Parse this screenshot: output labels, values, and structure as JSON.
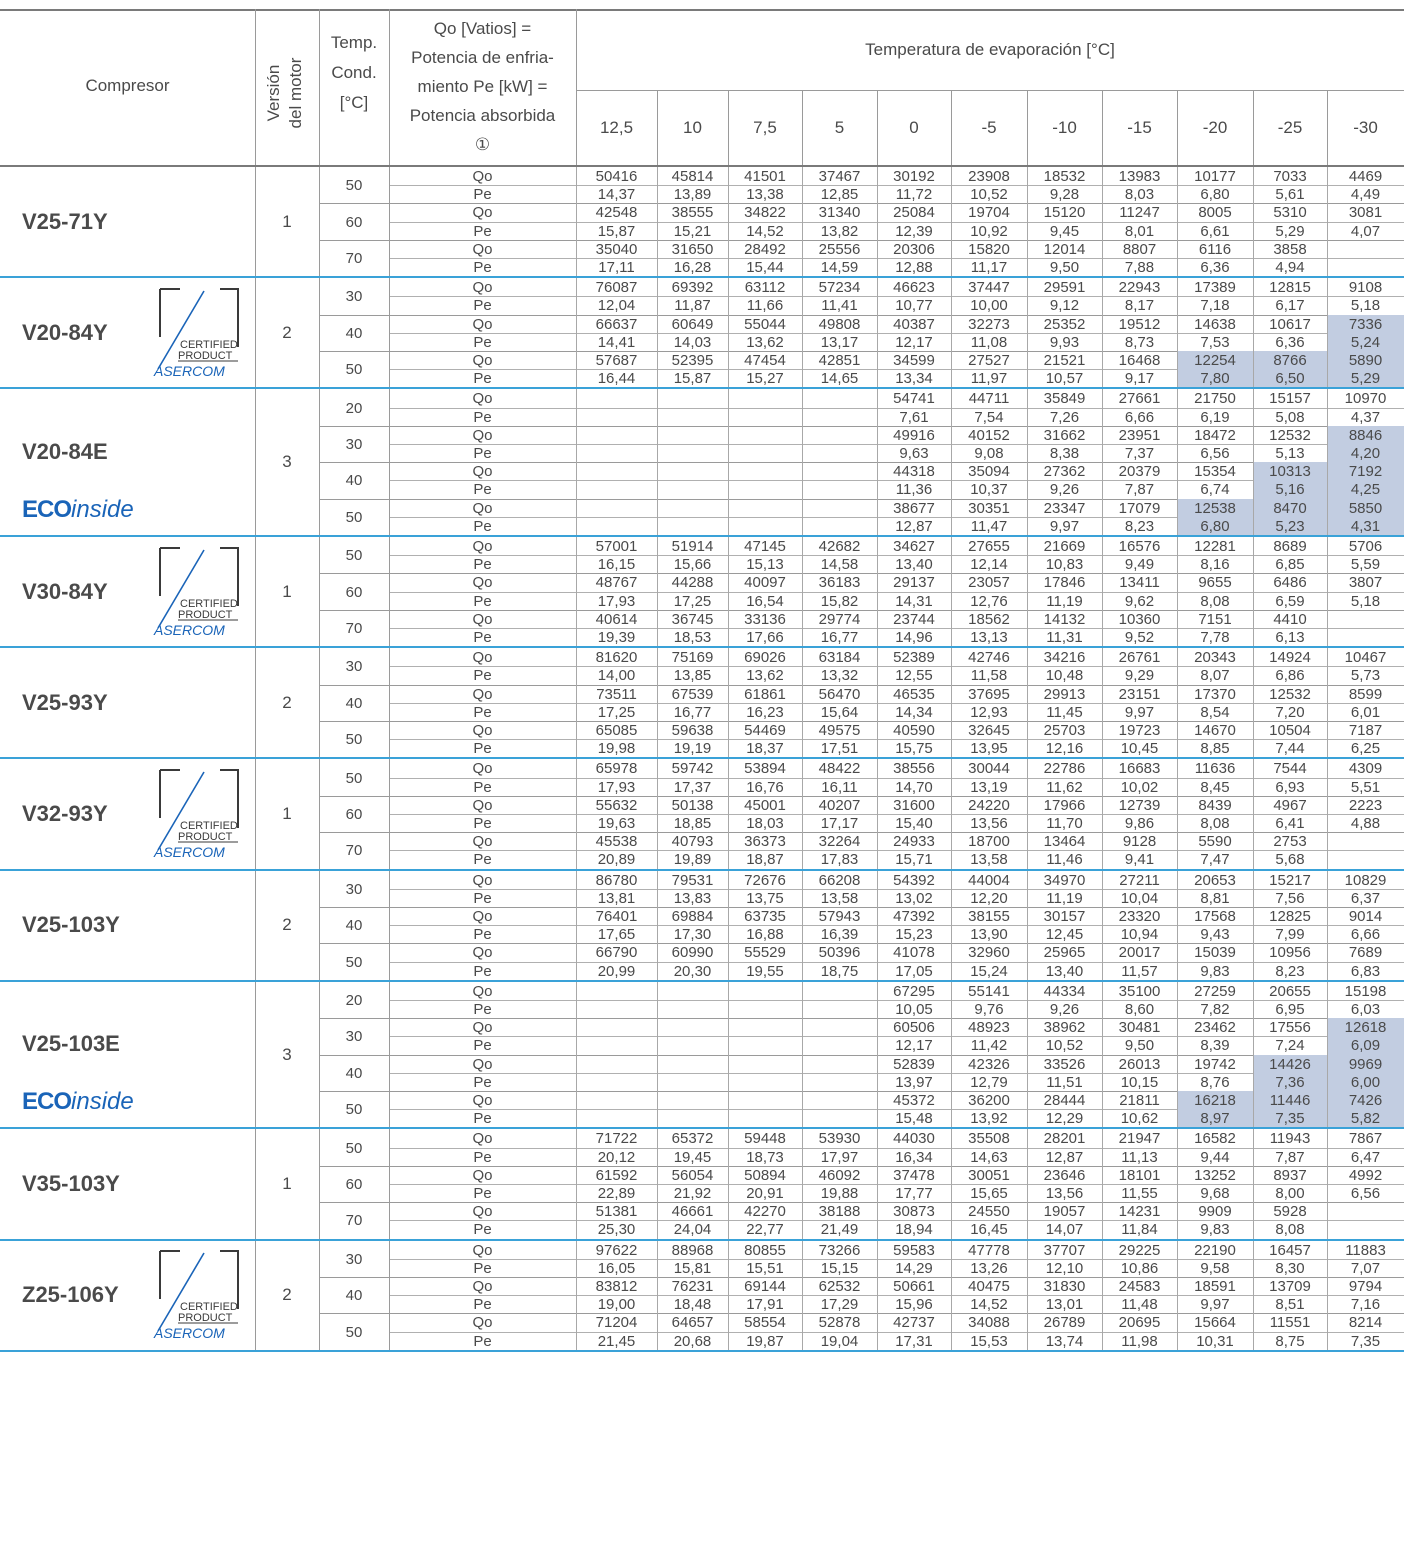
{
  "header": {
    "compresor": "Compresor",
    "version": [
      "Versión",
      "del motor"
    ],
    "temp": [
      "Temp.",
      "Cond.",
      "[°C]"
    ],
    "desc": [
      "Qo [Vatios] =",
      "Potencia de enfria-",
      "miento Pe [kW] =",
      "Potencia absorbida",
      "①"
    ],
    "evap": "Temperatura de evaporación  [°C]",
    "temps": [
      "12,5",
      "10",
      "7,5",
      "5",
      "0",
      "-5",
      "-10",
      "-15",
      "-20",
      "-25",
      "-30"
    ]
  },
  "badge": {
    "line1": "CERTIFIED",
    "line2": "PRODUCT",
    "brand": "ASERCOM"
  },
  "eco": {
    "bold": "ECO",
    "italic": "inside"
  },
  "groups": [
    {
      "model": "V25-71Y",
      "version": "1",
      "cert": false,
      "eco": false,
      "conds": [
        {
          "t": "50",
          "qo": [
            "50416",
            "45814",
            "41501",
            "37467",
            "30192",
            "23908",
            "18532",
            "13983",
            "10177",
            "7033",
            "4469"
          ],
          "pe": [
            "14,37",
            "13,89",
            "13,38",
            "12,85",
            "11,72",
            "10,52",
            "9,28",
            "8,03",
            "6,80",
            "5,61",
            "4,49"
          ]
        },
        {
          "t": "60",
          "qo": [
            "42548",
            "38555",
            "34822",
            "31340",
            "25084",
            "19704",
            "15120",
            "11247",
            "8005",
            "5310",
            "3081"
          ],
          "pe": [
            "15,87",
            "15,21",
            "14,52",
            "13,82",
            "12,39",
            "10,92",
            "9,45",
            "8,01",
            "6,61",
            "5,29",
            "4,07"
          ]
        },
        {
          "t": "70",
          "qo": [
            "35040",
            "31650",
            "28492",
            "25556",
            "20306",
            "15820",
            "12014",
            "8807",
            "6116",
            "3858",
            ""
          ],
          "pe": [
            "17,11",
            "16,28",
            "15,44",
            "14,59",
            "12,88",
            "11,17",
            "9,50",
            "7,88",
            "6,36",
            "4,94",
            ""
          ]
        }
      ]
    },
    {
      "model": "V20-84Y",
      "version": "2",
      "cert": true,
      "eco": false,
      "conds": [
        {
          "t": "30",
          "qo": [
            "76087",
            "69392",
            "63112",
            "57234",
            "46623",
            "37447",
            "29591",
            "22943",
            "17389",
            "12815",
            "9108"
          ],
          "pe": [
            "12,04",
            "11,87",
            "11,66",
            "11,41",
            "10,77",
            "10,00",
            "9,12",
            "8,17",
            "7,18",
            "6,17",
            "5,18"
          ]
        },
        {
          "t": "40",
          "qo": [
            "66637",
            "60649",
            "55044",
            "49808",
            "40387",
            "32273",
            "25352",
            "19512",
            "14638",
            "10617",
            "7336"
          ],
          "pe": [
            "14,41",
            "14,03",
            "13,62",
            "13,17",
            "12,17",
            "11,08",
            "9,93",
            "8,73",
            "7,53",
            "6,36",
            "5,24"
          ],
          "shade": [
            10
          ]
        },
        {
          "t": "50",
          "qo": [
            "57687",
            "52395",
            "47454",
            "42851",
            "34599",
            "27527",
            "21521",
            "16468",
            "12254",
            "8766",
            "5890"
          ],
          "pe": [
            "16,44",
            "15,87",
            "15,27",
            "14,65",
            "13,34",
            "11,97",
            "10,57",
            "9,17",
            "7,80",
            "6,50",
            "5,29"
          ],
          "shade": [
            8,
            9,
            10
          ]
        }
      ]
    },
    {
      "model": "V20-84E",
      "version": "3",
      "cert": false,
      "eco": true,
      "conds": [
        {
          "t": "20",
          "qo": [
            "",
            "",
            "",
            "",
            "54741",
            "44711",
            "35849",
            "27661",
            "21750",
            "15157",
            "10970"
          ],
          "pe": [
            "",
            "",
            "",
            "",
            "7,61",
            "7,54",
            "7,26",
            "6,66",
            "6,19",
            "5,08",
            "4,37"
          ]
        },
        {
          "t": "30",
          "qo": [
            "",
            "",
            "",
            "",
            "49916",
            "40152",
            "31662",
            "23951",
            "18472",
            "12532",
            "8846"
          ],
          "pe": [
            "",
            "",
            "",
            "",
            "9,63",
            "9,08",
            "8,38",
            "7,37",
            "6,56",
            "5,13",
            "4,20"
          ],
          "shade": [
            10
          ]
        },
        {
          "t": "40",
          "qo": [
            "",
            "",
            "",
            "",
            "44318",
            "35094",
            "27362",
            "20379",
            "15354",
            "10313",
            "7192"
          ],
          "pe": [
            "",
            "",
            "",
            "",
            "11,36",
            "10,37",
            "9,26",
            "7,87",
            "6,74",
            "5,16",
            "4,25"
          ],
          "shade": [
            9,
            10
          ]
        },
        {
          "t": "50",
          "qo": [
            "",
            "",
            "",
            "",
            "38677",
            "30351",
            "23347",
            "17079",
            "12538",
            "8470",
            "5850"
          ],
          "pe": [
            "",
            "",
            "",
            "",
            "12,87",
            "11,47",
            "9,97",
            "8,23",
            "6,80",
            "5,23",
            "4,31"
          ],
          "shade": [
            8,
            9,
            10
          ]
        }
      ]
    },
    {
      "model": "V30-84Y",
      "version": "1",
      "cert": true,
      "eco": false,
      "conds": [
        {
          "t": "50",
          "qo": [
            "57001",
            "51914",
            "47145",
            "42682",
            "34627",
            "27655",
            "21669",
            "16576",
            "12281",
            "8689",
            "5706"
          ],
          "pe": [
            "16,15",
            "15,66",
            "15,13",
            "14,58",
            "13,40",
            "12,14",
            "10,83",
            "9,49",
            "8,16",
            "6,85",
            "5,59"
          ]
        },
        {
          "t": "60",
          "qo": [
            "48767",
            "44288",
            "40097",
            "36183",
            "29137",
            "23057",
            "17846",
            "13411",
            "9655",
            "6486",
            "3807"
          ],
          "pe": [
            "17,93",
            "17,25",
            "16,54",
            "15,82",
            "14,31",
            "12,76",
            "11,19",
            "9,62",
            "8,08",
            "6,59",
            "5,18"
          ]
        },
        {
          "t": "70",
          "qo": [
            "40614",
            "36745",
            "33136",
            "29774",
            "23744",
            "18562",
            "14132",
            "10360",
            "7151",
            "4410",
            ""
          ],
          "pe": [
            "19,39",
            "18,53",
            "17,66",
            "16,77",
            "14,96",
            "13,13",
            "11,31",
            "9,52",
            "7,78",
            "6,13",
            ""
          ]
        }
      ]
    },
    {
      "model": "V25-93Y",
      "version": "2",
      "cert": false,
      "eco": false,
      "conds": [
        {
          "t": "30",
          "qo": [
            "81620",
            "75169",
            "69026",
            "63184",
            "52389",
            "42746",
            "34216",
            "26761",
            "20343",
            "14924",
            "10467"
          ],
          "pe": [
            "14,00",
            "13,85",
            "13,62",
            "13,32",
            "12,55",
            "11,58",
            "10,48",
            "9,29",
            "8,07",
            "6,86",
            "5,73"
          ]
        },
        {
          "t": "40",
          "qo": [
            "73511",
            "67539",
            "61861",
            "56470",
            "46535",
            "37695",
            "29913",
            "23151",
            "17370",
            "12532",
            "8599"
          ],
          "pe": [
            "17,25",
            "16,77",
            "16,23",
            "15,64",
            "14,34",
            "12,93",
            "11,45",
            "9,97",
            "8,54",
            "7,20",
            "6,01"
          ]
        },
        {
          "t": "50",
          "qo": [
            "65085",
            "59638",
            "54469",
            "49575",
            "40590",
            "32645",
            "25703",
            "19723",
            "14670",
            "10504",
            "7187"
          ],
          "pe": [
            "19,98",
            "19,19",
            "18,37",
            "17,51",
            "15,75",
            "13,95",
            "12,16",
            "10,45",
            "8,85",
            "7,44",
            "6,25"
          ]
        }
      ]
    },
    {
      "model": "V32-93Y",
      "version": "1",
      "cert": true,
      "eco": false,
      "conds": [
        {
          "t": "50",
          "qo": [
            "65978",
            "59742",
            "53894",
            "48422",
            "38556",
            "30044",
            "22786",
            "16683",
            "11636",
            "7544",
            "4309"
          ],
          "pe": [
            "17,93",
            "17,37",
            "16,76",
            "16,11",
            "14,70",
            "13,19",
            "11,62",
            "10,02",
            "8,45",
            "6,93",
            "5,51"
          ]
        },
        {
          "t": "60",
          "qo": [
            "55632",
            "50138",
            "45001",
            "40207",
            "31600",
            "24220",
            "17966",
            "12739",
            "8439",
            "4967",
            "2223"
          ],
          "pe": [
            "19,63",
            "18,85",
            "18,03",
            "17,17",
            "15,40",
            "13,56",
            "11,70",
            "9,86",
            "8,08",
            "6,41",
            "4,88"
          ]
        },
        {
          "t": "70",
          "qo": [
            "45538",
            "40793",
            "36373",
            "32264",
            "24933",
            "18700",
            "13464",
            "9128",
            "5590",
            "2753",
            ""
          ],
          "pe": [
            "20,89",
            "19,89",
            "18,87",
            "17,83",
            "15,71",
            "13,58",
            "11,46",
            "9,41",
            "7,47",
            "5,68",
            ""
          ]
        }
      ]
    },
    {
      "model": "V25-103Y",
      "version": "2",
      "cert": false,
      "eco": false,
      "conds": [
        {
          "t": "30",
          "qo": [
            "86780",
            "79531",
            "72676",
            "66208",
            "54392",
            "44004",
            "34970",
            "27211",
            "20653",
            "15217",
            "10829"
          ],
          "pe": [
            "13,81",
            "13,83",
            "13,75",
            "13,58",
            "13,02",
            "12,20",
            "11,19",
            "10,04",
            "8,81",
            "7,56",
            "6,37"
          ]
        },
        {
          "t": "40",
          "qo": [
            "76401",
            "69884",
            "63735",
            "57943",
            "47392",
            "38155",
            "30157",
            "23320",
            "17568",
            "12825",
            "9014"
          ],
          "pe": [
            "17,65",
            "17,30",
            "16,88",
            "16,39",
            "15,23",
            "13,90",
            "12,45",
            "10,94",
            "9,43",
            "7,99",
            "6,66"
          ]
        },
        {
          "t": "50",
          "qo": [
            "66790",
            "60990",
            "55529",
            "50396",
            "41078",
            "32960",
            "25965",
            "20017",
            "15039",
            "10956",
            "7689"
          ],
          "pe": [
            "20,99",
            "20,30",
            "19,55",
            "18,75",
            "17,05",
            "15,24",
            "13,40",
            "11,57",
            "9,83",
            "8,23",
            "6,83"
          ]
        }
      ]
    },
    {
      "model": "V25-103E",
      "version": "3",
      "cert": false,
      "eco": true,
      "conds": [
        {
          "t": "20",
          "qo": [
            "",
            "",
            "",
            "",
            "67295",
            "55141",
            "44334",
            "35100",
            "27259",
            "20655",
            "15198"
          ],
          "pe": [
            "",
            "",
            "",
            "",
            "10,05",
            "9,76",
            "9,26",
            "8,60",
            "7,82",
            "6,95",
            "6,03"
          ]
        },
        {
          "t": "30",
          "qo": [
            "",
            "",
            "",
            "",
            "60506",
            "48923",
            "38962",
            "30481",
            "23462",
            "17556",
            "12618"
          ],
          "pe": [
            "",
            "",
            "",
            "",
            "12,17",
            "11,42",
            "10,52",
            "9,50",
            "8,39",
            "7,24",
            "6,09"
          ],
          "shade": [
            10
          ]
        },
        {
          "t": "40",
          "qo": [
            "",
            "",
            "",
            "",
            "52839",
            "42326",
            "33526",
            "26013",
            "19742",
            "14426",
            "9969"
          ],
          "pe": [
            "",
            "",
            "",
            "",
            "13,97",
            "12,79",
            "11,51",
            "10,15",
            "8,76",
            "7,36",
            "6,00"
          ],
          "shade": [
            9,
            10
          ]
        },
        {
          "t": "50",
          "qo": [
            "",
            "",
            "",
            "",
            "45372",
            "36200",
            "28444",
            "21811",
            "16218",
            "11446",
            "7426"
          ],
          "pe": [
            "",
            "",
            "",
            "",
            "15,48",
            "13,92",
            "12,29",
            "10,62",
            "8,97",
            "7,35",
            "5,82"
          ],
          "shade": [
            8,
            9,
            10
          ]
        }
      ]
    },
    {
      "model": "V35-103Y",
      "version": "1",
      "cert": false,
      "eco": false,
      "conds": [
        {
          "t": "50",
          "qo": [
            "71722",
            "65372",
            "59448",
            "53930",
            "44030",
            "35508",
            "28201",
            "21947",
            "16582",
            "11943",
            "7867"
          ],
          "pe": [
            "20,12",
            "19,45",
            "18,73",
            "17,97",
            "16,34",
            "14,63",
            "12,87",
            "11,13",
            "9,44",
            "7,87",
            "6,47"
          ]
        },
        {
          "t": "60",
          "qo": [
            "61592",
            "56054",
            "50894",
            "46092",
            "37478",
            "30051",
            "23646",
            "18101",
            "13252",
            "8937",
            "4992"
          ],
          "pe": [
            "22,89",
            "21,92",
            "20,91",
            "19,88",
            "17,77",
            "15,65",
            "13,56",
            "11,55",
            "9,68",
            "8,00",
            "6,56"
          ]
        },
        {
          "t": "70",
          "qo": [
            "51381",
            "46661",
            "42270",
            "38188",
            "30873",
            "24550",
            "19057",
            "14231",
            "9909",
            "5928",
            ""
          ],
          "pe": [
            "25,30",
            "24,04",
            "22,77",
            "21,49",
            "18,94",
            "16,45",
            "14,07",
            "11,84",
            "9,83",
            "8,08",
            ""
          ]
        }
      ]
    },
    {
      "model": "Z25-106Y",
      "version": "2",
      "cert": true,
      "eco": false,
      "conds": [
        {
          "t": "30",
          "qo": [
            "97622",
            "88968",
            "80855",
            "73266",
            "59583",
            "47778",
            "37707",
            "29225",
            "22190",
            "16457",
            "11883"
          ],
          "pe": [
            "16,05",
            "15,81",
            "15,51",
            "15,15",
            "14,29",
            "13,26",
            "12,10",
            "10,86",
            "9,58",
            "8,30",
            "7,07"
          ]
        },
        {
          "t": "40",
          "qo": [
            "83812",
            "76231",
            "69144",
            "62532",
            "50661",
            "40475",
            "31830",
            "24583",
            "18591",
            "13709",
            "9794"
          ],
          "pe": [
            "19,00",
            "18,48",
            "17,91",
            "17,29",
            "15,96",
            "14,52",
            "13,01",
            "11,48",
            "9,97",
            "8,51",
            "7,16"
          ]
        },
        {
          "t": "50",
          "qo": [
            "71204",
            "64657",
            "58554",
            "52878",
            "42737",
            "34088",
            "26789",
            "20695",
            "15664",
            "11551",
            "8214"
          ],
          "pe": [
            "21,45",
            "20,68",
            "19,87",
            "19,04",
            "17,31",
            "15,53",
            "13,74",
            "11,98",
            "10,31",
            "8,75",
            "7,35"
          ]
        }
      ]
    }
  ]
}
